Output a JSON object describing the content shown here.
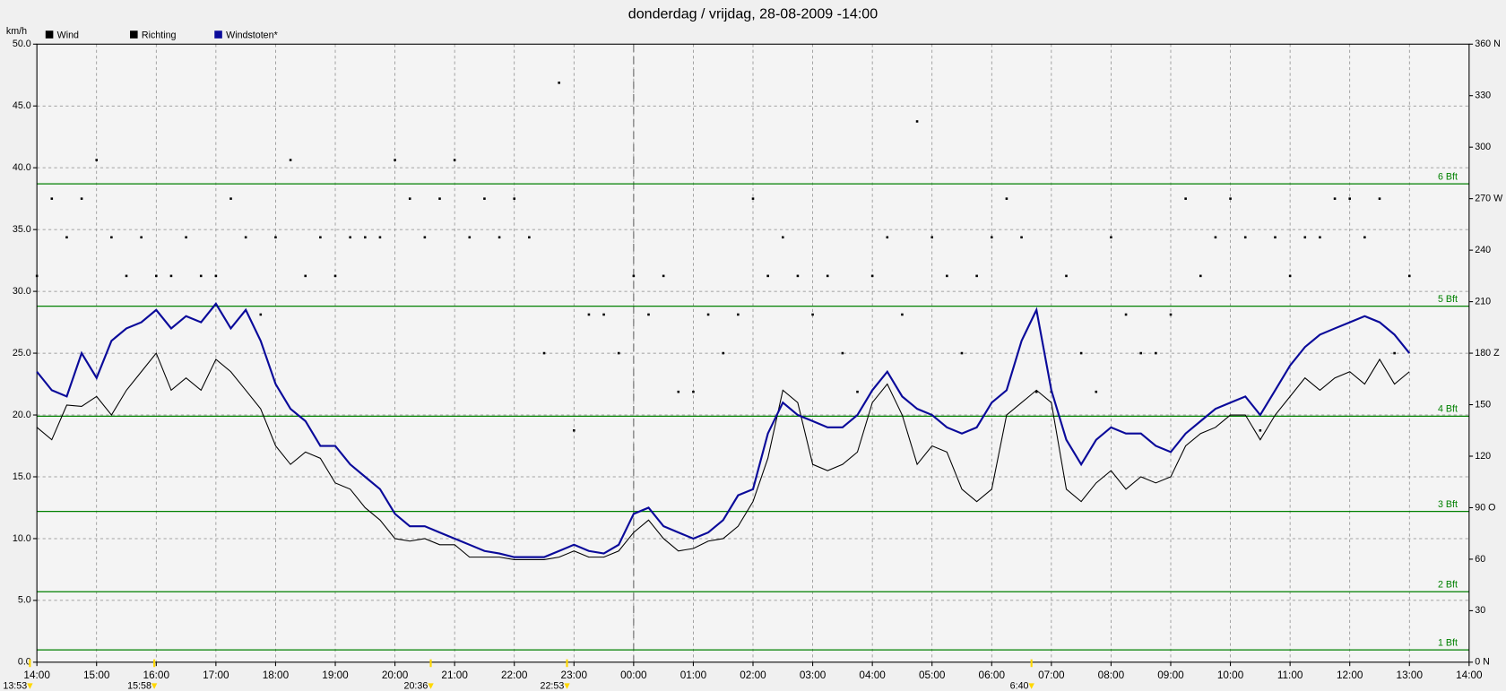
{
  "chart_data": {
    "type": "line",
    "title": "donderdag / vrijdag, 28-08-2009  -14:00",
    "y_label": "km/h",
    "grid": true,
    "background": "#f4f4f4",
    "xlim": [
      0,
      24
    ],
    "xticks": [
      {
        "value": 0,
        "label": "14:00"
      },
      {
        "value": 1,
        "label": "15:00"
      },
      {
        "value": 2,
        "label": "16:00"
      },
      {
        "value": 3,
        "label": "17:00"
      },
      {
        "value": 4,
        "label": "18:00"
      },
      {
        "value": 5,
        "label": "19:00"
      },
      {
        "value": 6,
        "label": "20:00"
      },
      {
        "value": 7,
        "label": "21:00"
      },
      {
        "value": 8,
        "label": "22:00"
      },
      {
        "value": 9,
        "label": "23:00"
      },
      {
        "value": 10,
        "label": "00:00"
      },
      {
        "value": 11,
        "label": "01:00"
      },
      {
        "value": 12,
        "label": "02:00"
      },
      {
        "value": 13,
        "label": "03:00"
      },
      {
        "value": 14,
        "label": "04:00"
      },
      {
        "value": 15,
        "label": "05:00"
      },
      {
        "value": 16,
        "label": "06:00"
      },
      {
        "value": 17,
        "label": "07:00"
      },
      {
        "value": 18,
        "label": "08:00"
      },
      {
        "value": 19,
        "label": "09:00"
      },
      {
        "value": 20,
        "label": "10:00"
      },
      {
        "value": 21,
        "label": "11:00"
      },
      {
        "value": 22,
        "label": "12:00"
      },
      {
        "value": 23,
        "label": "13:00"
      },
      {
        "value": 24,
        "label": "14:00"
      }
    ],
    "day_boundary": 10,
    "ylim": [
      0,
      50
    ],
    "yticks": [
      {
        "value": 0,
        "label": "0.0"
      },
      {
        "value": 5,
        "label": "5.0"
      },
      {
        "value": 10,
        "label": "10.0"
      },
      {
        "value": 15,
        "label": "15.0"
      },
      {
        "value": 20,
        "label": "20.0"
      },
      {
        "value": 25,
        "label": "25.0"
      },
      {
        "value": 30,
        "label": "30.0"
      },
      {
        "value": 35,
        "label": "35.0"
      },
      {
        "value": 40,
        "label": "40.0"
      },
      {
        "value": 45,
        "label": "45.0"
      },
      {
        "value": 50,
        "label": "50.0"
      }
    ],
    "y2lim": [
      0,
      360
    ],
    "y2ticks": [
      {
        "value": 0,
        "label": "0 N"
      },
      30,
      60,
      {
        "value": 90,
        "label": "90 O"
      },
      120,
      150,
      {
        "value": 180,
        "label": "180 Z"
      },
      210,
      240,
      {
        "value": 270,
        "label": "270 W"
      },
      300,
      330,
      {
        "value": 360,
        "label": "360 N"
      }
    ],
    "reference_lines": [
      {
        "label": "1 Bft",
        "value": 1.0,
        "color": "#008000"
      },
      {
        "label": "2 Bft",
        "value": 5.7,
        "color": "#008000"
      },
      {
        "label": "3 Bft",
        "value": 12.2,
        "color": "#008000"
      },
      {
        "label": "4 Bft",
        "value": 19.9,
        "color": "#008000"
      },
      {
        "label": "5 Bft",
        "value": 28.8,
        "color": "#008000"
      },
      {
        "label": "6 Bft",
        "value": 38.7,
        "color": "#008000"
      }
    ],
    "annotations": [
      {
        "label": "13:53",
        "x": -0.117
      },
      {
        "label": "15:58",
        "x": 1.967
      },
      {
        "label": "20:36",
        "x": 6.6
      },
      {
        "label": "22:53",
        "x": 8.883
      },
      {
        "label": "6:40",
        "x": 16.667
      }
    ],
    "x": [
      0,
      0.25,
      0.5,
      0.75,
      1,
      1.25,
      1.5,
      1.75,
      2,
      2.25,
      2.5,
      2.75,
      3,
      3.25,
      3.5,
      3.75,
      4,
      4.25,
      4.5,
      4.75,
      5,
      5.25,
      5.5,
      5.75,
      6,
      6.25,
      6.5,
      6.75,
      7,
      7.25,
      7.5,
      7.75,
      8,
      8.25,
      8.5,
      8.75,
      9,
      9.25,
      9.5,
      9.75,
      10,
      10.25,
      10.5,
      10.75,
      11,
      11.25,
      11.5,
      11.75,
      12,
      12.25,
      12.5,
      12.75,
      13,
      13.25,
      13.5,
      13.75,
      14,
      14.25,
      14.5,
      14.75,
      15,
      15.25,
      15.5,
      15.75,
      16,
      16.25,
      16.5,
      16.75,
      17,
      17.25,
      17.5,
      17.75,
      18,
      18.25,
      18.5,
      18.75,
      19,
      19.25,
      19.5,
      19.75,
      20,
      20.25,
      20.5,
      20.75,
      21,
      21.25,
      21.5,
      21.75,
      22,
      22.25,
      22.5,
      22.75,
      23
    ],
    "series": [
      {
        "name": "Wind",
        "color": "#000000",
        "type": "line",
        "values": [
          19.0,
          18.0,
          20.8,
          20.7,
          21.5,
          20.0,
          22.0,
          23.5,
          25.0,
          22.0,
          23.0,
          22.0,
          24.5,
          23.5,
          22.0,
          20.5,
          17.5,
          16.0,
          17.0,
          16.5,
          14.5,
          14.0,
          12.5,
          11.5,
          10.0,
          9.8,
          10.0,
          9.5,
          9.5,
          8.5,
          8.5,
          8.5,
          8.3,
          8.3,
          8.3,
          8.5,
          9.0,
          8.5,
          8.5,
          9.0,
          10.5,
          11.5,
          10.0,
          9.0,
          9.2,
          9.8,
          10.0,
          11.0,
          13.0,
          16.5,
          22.0,
          21.0,
          16.0,
          15.5,
          16.0,
          17.0,
          21.0,
          22.5,
          20.0,
          16.0,
          17.5,
          17.0,
          14.0,
          13.0,
          14.0,
          20.0,
          21.0,
          22.0,
          21.0,
          14.0,
          13.0,
          14.5,
          15.5,
          14.0,
          15.0,
          14.5,
          15.0,
          17.5,
          18.5,
          19.0,
          20.0,
          20.0,
          18.0,
          20.0,
          21.5,
          23.0,
          22.0,
          23.0,
          23.5,
          22.5,
          24.5,
          22.5,
          23.5
        ]
      },
      {
        "name": "Richting",
        "color": "#000000",
        "type": "scatter",
        "axis": "y2",
        "values": [
          225,
          270,
          247.5,
          270,
          292.5,
          247.5,
          225,
          247.5,
          225,
          225,
          247.5,
          225,
          225,
          270,
          247.5,
          202.5,
          247.5,
          292.5,
          225,
          247.5,
          225,
          247.5,
          247.5,
          247.5,
          292.5,
          270,
          247.5,
          270,
          292.5,
          247.5,
          270,
          247.5,
          270,
          247.5,
          180,
          337.5,
          135,
          202.5,
          202.5,
          180,
          225,
          202.5,
          225,
          157.5,
          157.5,
          202.5,
          180,
          202.5,
          270,
          225,
          247.5,
          225,
          202.5,
          225,
          180,
          157.5,
          225,
          247.5,
          202.5,
          315,
          247.5,
          225,
          180,
          225,
          247.5,
          270,
          247.5,
          157.5,
          157.5,
          225,
          180,
          157.5,
          247.5,
          202.5,
          180,
          180,
          202.5,
          270,
          225,
          247.5,
          270,
          247.5,
          135,
          247.5,
          225,
          247.5,
          247.5,
          270,
          270,
          247.5,
          270,
          180,
          225
        ]
      },
      {
        "name": "Windstoten*",
        "color": "#0a0a9a",
        "type": "line",
        "values": [
          23.5,
          22.0,
          21.5,
          25.0,
          23.0,
          26.0,
          27.0,
          27.5,
          28.5,
          27.0,
          28.0,
          27.5,
          29.0,
          27.0,
          28.5,
          26.0,
          22.5,
          20.5,
          19.5,
          17.5,
          17.5,
          16.0,
          15.0,
          14.0,
          12.0,
          11.0,
          11.0,
          10.5,
          10.0,
          9.5,
          9.0,
          8.8,
          8.5,
          8.5,
          8.5,
          9.0,
          9.5,
          9.0,
          8.8,
          9.5,
          12.0,
          12.5,
          11.0,
          10.5,
          10.0,
          10.5,
          11.5,
          13.5,
          14.0,
          18.5,
          21.0,
          20.0,
          19.5,
          19.0,
          19.0,
          20.0,
          22.0,
          23.5,
          21.5,
          20.5,
          20.0,
          19.0,
          18.5,
          19.0,
          21.0,
          22.0,
          26.0,
          28.5,
          22.0,
          18.0,
          16.0,
          18.0,
          19.0,
          18.5,
          18.5,
          17.5,
          17.0,
          18.5,
          19.5,
          20.5,
          21.0,
          21.5,
          20.0,
          22.0,
          24.0,
          25.5,
          26.5,
          27.0,
          27.5,
          28.0,
          27.5,
          26.5,
          25.0
        ]
      }
    ]
  }
}
